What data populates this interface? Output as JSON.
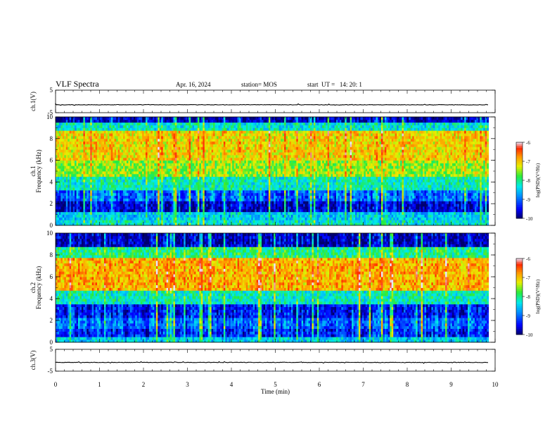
{
  "header": {
    "title": "VLF Spectra",
    "date": "Apr. 16, 2024",
    "station": "station= MOS",
    "start": "start  UT =   14: 20: 1"
  },
  "chart_data": [
    {
      "type": "line",
      "panel": "ch1-waveform",
      "ylabel": "ch.1(V)",
      "ylim": [
        -5,
        5
      ],
      "yticks": [
        "5",
        "-5"
      ],
      "x": [
        0,
        10
      ],
      "y_level": -1.5
    },
    {
      "type": "heatmap",
      "panel": "ch1-spectrogram",
      "ylabel": "ch.1 Frequency (kHz)",
      "ylim": [
        0,
        10
      ],
      "yticks": [
        "0",
        "2",
        "4",
        "6",
        "8",
        "10"
      ],
      "colorbar": {
        "label": "log(PSD)(V²/Hz)",
        "range": [
          -10,
          -6
        ],
        "ticks": [
          "-6",
          "-7",
          "-8",
          "-9",
          "-10"
        ]
      },
      "bands_log_psd": [
        {
          "f": [
            0.0,
            0.5
          ],
          "v": -8.3
        },
        {
          "f": [
            0.5,
            1.2
          ],
          "v": -8.5
        },
        {
          "f": [
            1.2,
            2.2
          ],
          "v": -9.6
        },
        {
          "f": [
            2.2,
            3.2
          ],
          "v": -9.0
        },
        {
          "f": [
            3.2,
            4.5
          ],
          "v": -8.2
        },
        {
          "f": [
            4.5,
            6.0
          ],
          "v": -7.5
        },
        {
          "f": [
            6.0,
            8.8
          ],
          "v": -7.1
        },
        {
          "f": [
            8.8,
            9.5
          ],
          "v": -8.3
        },
        {
          "f": [
            9.5,
            10.0
          ],
          "v": -9.7
        }
      ]
    },
    {
      "type": "heatmap",
      "panel": "ch2-spectrogram",
      "ylabel": "ch.2 Frequency (kHz)",
      "ylim": [
        0,
        10
      ],
      "yticks": [
        "0",
        "2",
        "4",
        "6",
        "8",
        "10"
      ],
      "colorbar": {
        "label": "log(PSD)(V²/Hz)",
        "range": [
          -10,
          -6
        ],
        "ticks": [
          "-6",
          "-7",
          "-8",
          "-9",
          "-10"
        ]
      },
      "bands_log_psd": [
        {
          "f": [
            0.0,
            0.5
          ],
          "v": -8.5
        },
        {
          "f": [
            0.5,
            1.2
          ],
          "v": -9.3
        },
        {
          "f": [
            1.2,
            2.2
          ],
          "v": -9.0
        },
        {
          "f": [
            2.2,
            3.4
          ],
          "v": -9.4
        },
        {
          "f": [
            3.4,
            4.8
          ],
          "v": -8.2
        },
        {
          "f": [
            4.8,
            7.8
          ],
          "v": -6.9
        },
        {
          "f": [
            7.8,
            8.8
          ],
          "v": -8.0
        },
        {
          "f": [
            8.8,
            10.0
          ],
          "v": -9.7
        }
      ]
    },
    {
      "type": "line",
      "panel": "ch3-waveform",
      "ylabel": "ch.3(V)",
      "ylim": [
        -5,
        5
      ],
      "yticks": [
        "5",
        "-5"
      ],
      "x": [
        0,
        10
      ],
      "y_level": -1.0
    }
  ],
  "xaxis": {
    "label": "Time  (min)",
    "ticks": [
      "0",
      "1",
      "2",
      "3",
      "4",
      "5",
      "6",
      "7",
      "8",
      "9",
      "10"
    ],
    "range": [
      0,
      10
    ],
    "data_end": 9.85
  }
}
